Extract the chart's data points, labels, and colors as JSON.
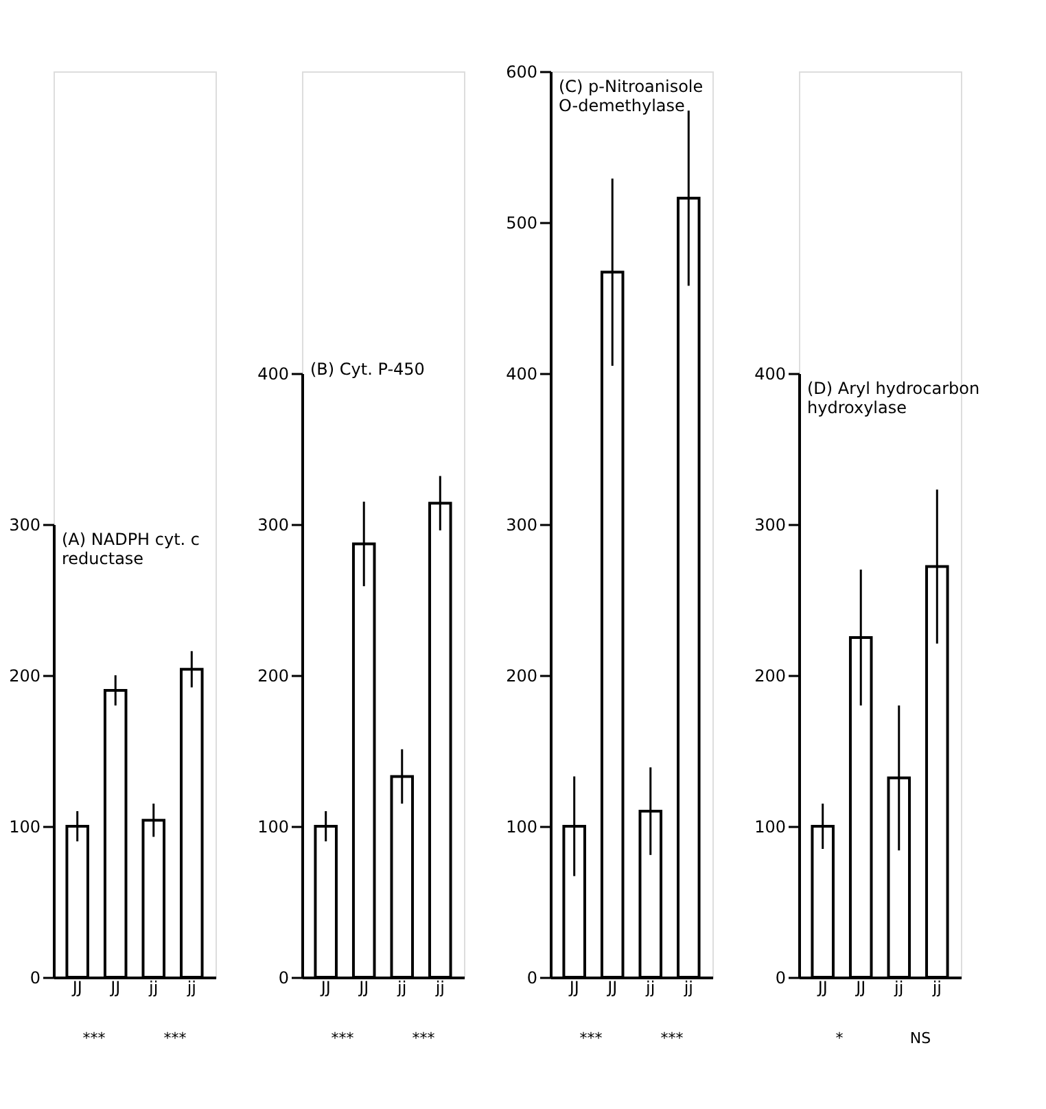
{
  "chart_data": [
    {
      "type": "bar",
      "title": "(A) NADPH cyt. c\nreductase",
      "categories": [
        "JJ",
        "JJ",
        "jj",
        "jj"
      ],
      "values": [
        100,
        190,
        104,
        204
      ],
      "errors": [
        10,
        10,
        11,
        12
      ],
      "colors": [
        "#ffffff",
        "#ffffff",
        "#ffffff",
        "#ffffff"
      ],
      "ylim": [
        0,
        300
      ],
      "yticks": [
        0,
        100,
        200,
        300
      ],
      "annotations": [
        "***",
        "***"
      ]
    },
    {
      "type": "bar",
      "title": "(B)  Cyt. P-450",
      "categories": [
        "JJ",
        "JJ",
        "jj",
        "jj"
      ],
      "values": [
        100,
        287,
        133,
        314
      ],
      "errors": [
        10,
        28,
        18,
        18
      ],
      "colors": [
        "#ffffff",
        "#ffffff",
        "#ffffff",
        "#ffffff"
      ],
      "ylim": [
        0,
        400
      ],
      "yticks": [
        0,
        100,
        200,
        300,
        400
      ],
      "annotations": [
        "***",
        "***"
      ]
    },
    {
      "type": "bar",
      "title": "(C)  p-Nitroanisole\nO-demethylase",
      "categories": [
        "JJ",
        "JJ",
        "jj",
        "jj"
      ],
      "values": [
        100,
        467,
        110,
        516
      ],
      "errors": [
        33,
        62,
        29,
        58
      ],
      "colors": [
        "#ffffff",
        "#ffffff",
        "#ffffff",
        "#ffffff"
      ],
      "ylim": [
        0,
        600
      ],
      "yticks": [
        0,
        100,
        200,
        300,
        400,
        500,
        600
      ],
      "annotations": [
        "***",
        "***"
      ]
    },
    {
      "type": "bar",
      "title": "(D)  Aryl hydrocarbon\nhydroxylase",
      "categories": [
        "JJ",
        "JJ",
        "jj",
        "jj"
      ],
      "values": [
        100,
        225,
        132,
        272
      ],
      "errors": [
        15,
        45,
        48,
        51
      ],
      "colors": [
        "#ffffff",
        "#ffffff",
        "#ffffff",
        "#ffffff"
      ],
      "ylim": [
        0,
        400
      ],
      "yticks": [
        0,
        100,
        200,
        300,
        400
      ],
      "annotations": [
        "*",
        "NS"
      ]
    }
  ]
}
